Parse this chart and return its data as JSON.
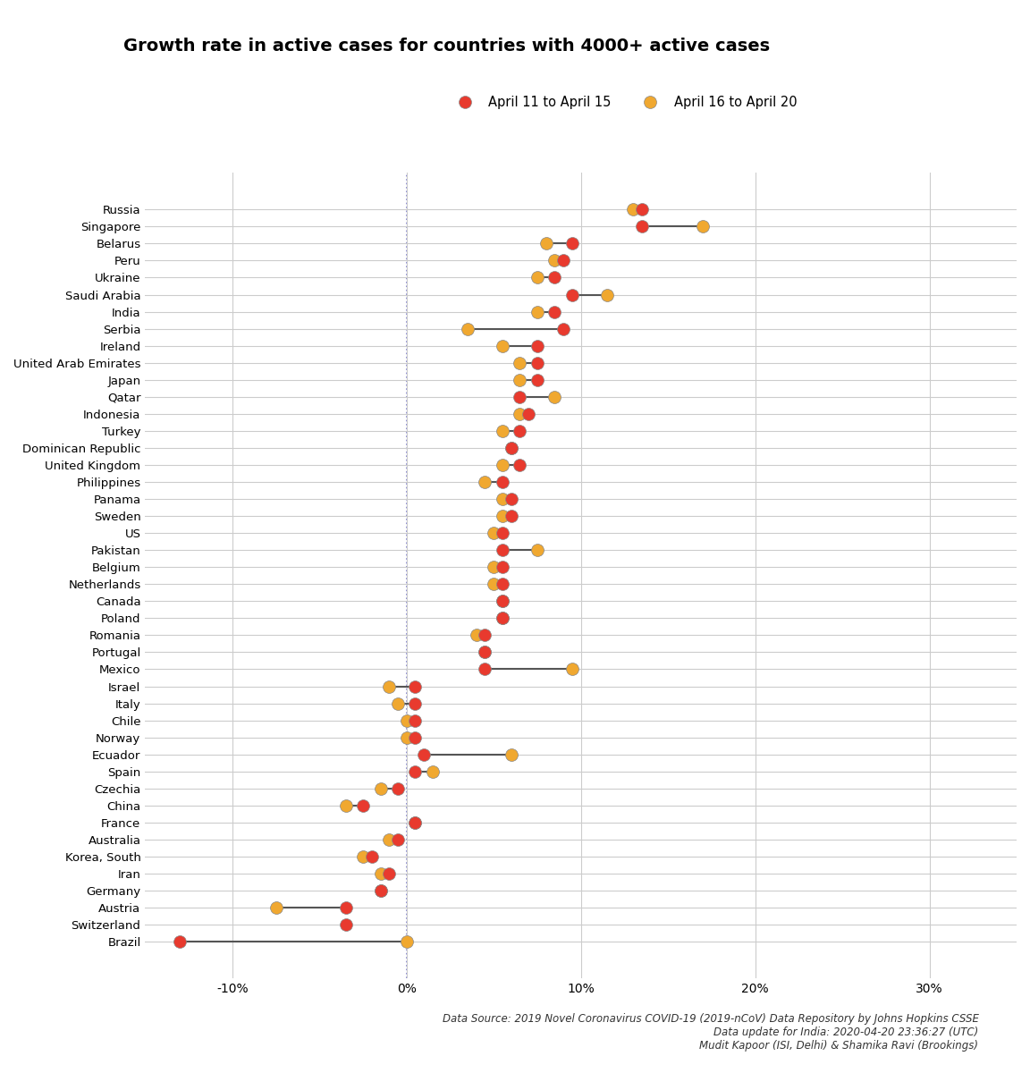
{
  "title": "Growth rate in active cases for countries with 4000+ active cases",
  "legend_red": "April 11 to April 15",
  "legend_orange": "April 16 to April 20",
  "red_color": "#e83a2e",
  "orange_color": "#f0a830",
  "footnote_lines": [
    "Data Source: 2019 Novel Coronavirus COVID-19 (2019-nCoV) Data Repository by Johns Hopkins CSSE",
    "Data update for India: 2020-04-20 23:36:27 (UTC)",
    "Mudit Kapoor (ISI, Delhi) & Shamika Ravi (Brookings)"
  ],
  "countries": [
    "Russia",
    "Singapore",
    "Belarus",
    "Peru",
    "Ukraine",
    "Saudi Arabia",
    "India",
    "Serbia",
    "Ireland",
    "United Arab Emirates",
    "Japan",
    "Qatar",
    "Indonesia",
    "Turkey",
    "Dominican Republic",
    "United Kingdom",
    "Philippines",
    "Panama",
    "Sweden",
    "US",
    "Pakistan",
    "Belgium",
    "Netherlands",
    "Canada",
    "Poland",
    "Romania",
    "Portugal",
    "Mexico",
    "Israel",
    "Italy",
    "Chile",
    "Norway",
    "Ecuador",
    "Spain",
    "Czechia",
    "China",
    "France",
    "Australia",
    "Korea, South",
    "Iran",
    "Germany",
    "Austria",
    "Switzerland",
    "Brazil"
  ],
  "red_values": [
    13.5,
    13.5,
    9.5,
    9.0,
    8.5,
    9.5,
    8.5,
    9.0,
    7.5,
    7.5,
    7.5,
    6.5,
    7.0,
    6.5,
    6.0,
    6.5,
    5.5,
    6.0,
    6.0,
    5.5,
    5.5,
    5.5,
    5.5,
    5.5,
    5.5,
    4.5,
    4.5,
    4.5,
    0.5,
    0.5,
    0.5,
    0.5,
    1.0,
    0.5,
    -0.5,
    -2.5,
    0.5,
    -0.5,
    -2.0,
    -1.0,
    -1.5,
    -3.5,
    -3.5,
    -13.0
  ],
  "orange_values": [
    13.0,
    17.0,
    8.0,
    8.5,
    7.5,
    11.5,
    7.5,
    3.5,
    5.5,
    6.5,
    6.5,
    8.5,
    6.5,
    5.5,
    6.0,
    5.5,
    4.5,
    5.5,
    5.5,
    5.0,
    7.5,
    5.0,
    5.0,
    5.5,
    5.5,
    4.0,
    4.5,
    9.5,
    -1.0,
    -0.5,
    0.0,
    0.0,
    6.0,
    1.5,
    -1.5,
    -3.5,
    0.5,
    -1.0,
    -2.5,
    -1.5,
    -1.5,
    -7.5,
    null,
    0.0
  ],
  "xlim": [
    -15,
    35
  ],
  "xticks": [
    -10,
    0,
    10,
    20,
    30
  ],
  "xticklabels": [
    "-10%",
    "0%",
    "10%",
    "20%",
    "30%"
  ],
  "background_color": "#ffffff",
  "grid_color": "#cccccc"
}
